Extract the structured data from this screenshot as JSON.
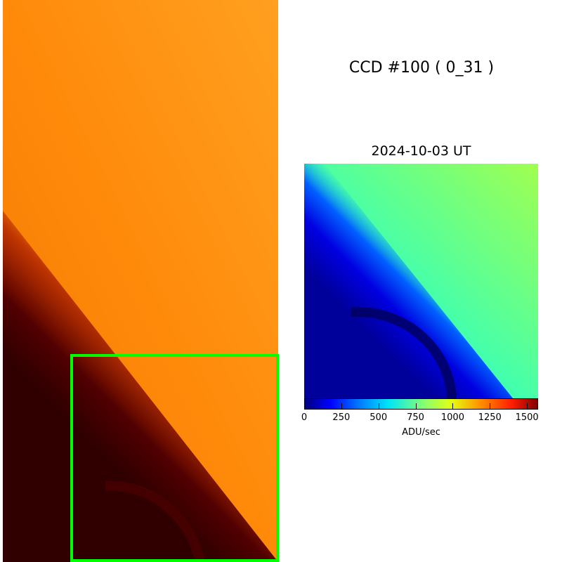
{
  "title": "CCD #100 ( 0_31 )",
  "subtitle": "2024-10-03 UT",
  "colorbar": {
    "label": "ADU/sec",
    "range": [
      0,
      1575
    ],
    "ticks": [
      "0",
      "250",
      "500",
      "750",
      "1000",
      "1250",
      "1500"
    ],
    "tick_values": [
      0,
      250,
      500,
      750,
      1000,
      1250,
      1500
    ],
    "colormap": "jet"
  },
  "full_image": {
    "colormap": "afmhot",
    "highlight_box_color": "#00ff00"
  }
}
